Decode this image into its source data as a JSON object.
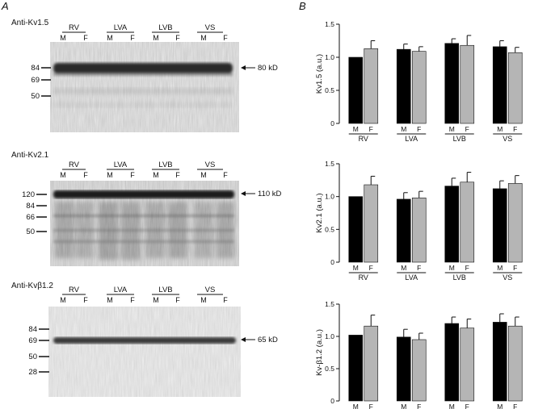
{
  "panels": {
    "a": "A",
    "b": "B"
  },
  "blots": [
    {
      "title": "Anti-Kv1.5",
      "groups": [
        "RV",
        "LVA",
        "LVB",
        "VS"
      ],
      "lane_labels": [
        "M",
        "F"
      ],
      "markers": [
        "84",
        "69",
        "50"
      ],
      "band": "80 kD"
    },
    {
      "title": "Anti-Kv2.1",
      "groups": [
        "RV",
        "LVA",
        "LVB",
        "VS"
      ],
      "lane_labels": [
        "M",
        "F"
      ],
      "markers": [
        "120",
        "84",
        "66",
        "50"
      ],
      "band": "110 kD"
    },
    {
      "title": "Anti-Kvβ1.2",
      "groups": [
        "RV",
        "LVA",
        "LVB",
        "VS"
      ],
      "lane_labels": [
        "M",
        "F"
      ],
      "markers": [
        "84",
        "69",
        "50",
        "28"
      ],
      "band": "65 kD"
    }
  ],
  "chart_data": [
    {
      "type": "bar",
      "ylabel": "Kv1.5 (a.u.)",
      "ylim": [
        0,
        1.5
      ],
      "yticks": [
        "0",
        "0.5",
        "1.0",
        "1.5"
      ],
      "categories": [
        "RV",
        "LVA",
        "LVB",
        "VS"
      ],
      "series": [
        {
          "name": "M",
          "color": "#000000",
          "values": [
            1.0,
            1.12,
            1.21,
            1.16
          ],
          "errors": [
            0.0,
            0.08,
            0.07,
            0.09
          ]
        },
        {
          "name": "F",
          "color": "#b5b5b5",
          "values": [
            1.13,
            1.09,
            1.18,
            1.07
          ],
          "errors": [
            0.12,
            0.07,
            0.15,
            0.08
          ]
        }
      ]
    },
    {
      "type": "bar",
      "ylabel": "Kv2.1 (a.u.)",
      "ylim": [
        0,
        1.5
      ],
      "yticks": [
        "0",
        "0.5",
        "1.0",
        "1.5"
      ],
      "categories": [
        "RV",
        "LVA",
        "LVB",
        "VS"
      ],
      "series": [
        {
          "name": "M",
          "color": "#000000",
          "values": [
            1.0,
            0.96,
            1.16,
            1.12
          ],
          "errors": [
            0.0,
            0.1,
            0.12,
            0.12
          ]
        },
        {
          "name": "F",
          "color": "#b5b5b5",
          "values": [
            1.18,
            0.98,
            1.22,
            1.2
          ],
          "errors": [
            0.13,
            0.1,
            0.15,
            0.12
          ]
        }
      ]
    },
    {
      "type": "bar",
      "ylabel": "Kv-β1.2 (a.u.)",
      "ylim": [
        0,
        1.5
      ],
      "yticks": [
        "0",
        "0.5",
        "1.0",
        "1.5"
      ],
      "categories": [
        "RV",
        "LVA",
        "LVB",
        "VS"
      ],
      "series": [
        {
          "name": "M",
          "color": "#000000",
          "values": [
            1.02,
            0.99,
            1.2,
            1.22
          ],
          "errors": [
            0.0,
            0.12,
            0.1,
            0.13
          ]
        },
        {
          "name": "F",
          "color": "#b5b5b5",
          "values": [
            1.16,
            0.95,
            1.13,
            1.16
          ],
          "errors": [
            0.17,
            0.1,
            0.14,
            0.14
          ]
        }
      ]
    }
  ]
}
